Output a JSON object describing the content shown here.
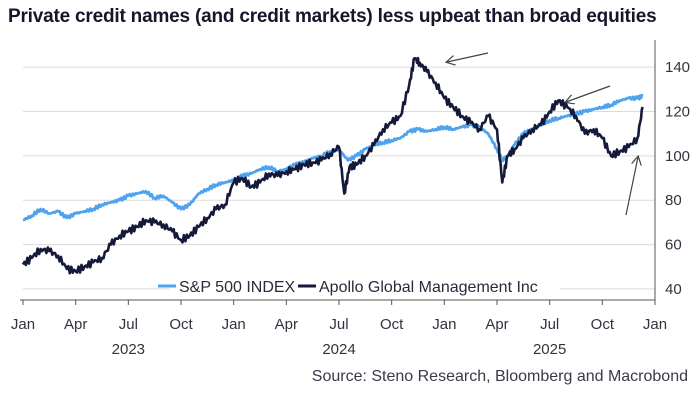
{
  "title": "Private credit names (and credit markets) less upbeat than broad equities",
  "source": "Source: Steno Research, Bloomberg and Macrobond",
  "chart_data": {
    "type": "line",
    "title": "Private credit names (and credit markets) less upbeat than broad equities",
    "ylim": [
      35,
      150
    ],
    "yticks": [
      40,
      60,
      80,
      100,
      120,
      140
    ],
    "xlim": [
      0,
      36
    ],
    "month_ticks": [
      {
        "m": 0,
        "label": "Jan"
      },
      {
        "m": 3,
        "label": "Apr"
      },
      {
        "m": 6,
        "label": "Jul"
      },
      {
        "m": 9,
        "label": "Oct"
      },
      {
        "m": 12,
        "label": "Jan"
      },
      {
        "m": 15,
        "label": "Apr"
      },
      {
        "m": 18,
        "label": "Jul"
      },
      {
        "m": 21,
        "label": "Oct"
      },
      {
        "m": 24,
        "label": "Jan"
      },
      {
        "m": 27,
        "label": "Apr"
      },
      {
        "m": 30,
        "label": "Jul"
      },
      {
        "m": 33,
        "label": "Oct"
      },
      {
        "m": 36,
        "label": "Jan"
      }
    ],
    "year_labels": [
      {
        "m": 6,
        "label": "2023"
      },
      {
        "m": 18,
        "label": "2024"
      },
      {
        "m": 30,
        "label": "2025"
      }
    ],
    "legend_position": "bottom-center",
    "series": [
      {
        "name": "S&P 500 INDEX",
        "color": "#4fa3ee",
        "x": [
          0,
          0.5,
          1,
          1.5,
          2,
          2.5,
          3,
          3.5,
          4,
          4.5,
          5,
          5.5,
          6,
          6.5,
          7,
          7.5,
          8,
          8.5,
          9,
          9.5,
          10,
          10.5,
          11,
          11.5,
          12,
          12.5,
          13,
          13.5,
          14,
          14.5,
          15,
          15.5,
          16,
          16.5,
          17,
          17.5,
          18,
          18.5,
          19,
          19.5,
          20,
          20.5,
          21,
          21.5,
          22,
          22.5,
          23,
          23.5,
          24,
          24.5,
          25,
          25.5,
          26,
          26.5,
          27,
          27.3,
          27.6,
          28,
          28.5,
          29,
          29.5,
          30,
          30.5,
          31,
          31.5,
          32,
          32.5,
          33,
          33.5,
          34,
          34.5,
          35,
          35.3
        ],
        "values": [
          71,
          73,
          76,
          74,
          75,
          72,
          74,
          75,
          76,
          78,
          79,
          80,
          82,
          83,
          84,
          81,
          82,
          79,
          76,
          78,
          83,
          85,
          87,
          88,
          89,
          91,
          92,
          94,
          95,
          93,
          94,
          96,
          97,
          99,
          100,
          102,
          103,
          98,
          100,
          103,
          105,
          106,
          107,
          108,
          111,
          112,
          111,
          112,
          113,
          112,
          113,
          114,
          113,
          110,
          103,
          98,
          100,
          105,
          110,
          112,
          114,
          116,
          117,
          118,
          119,
          120,
          121,
          122,
          123,
          125,
          126,
          126,
          127
        ]
      },
      {
        "name": "Apollo Global Management Inc",
        "color": "#161a3a",
        "x": [
          0,
          0.5,
          1,
          1.5,
          2,
          2.5,
          3,
          3.5,
          4,
          4.5,
          5,
          5.5,
          6,
          6.5,
          7,
          7.5,
          8,
          8.5,
          9,
          9.5,
          10,
          10.5,
          11,
          11.5,
          12,
          12.5,
          13,
          13.5,
          14,
          14.5,
          15,
          15.5,
          16,
          16.5,
          17,
          17.5,
          18,
          18.3,
          18.6,
          19,
          19.5,
          20,
          20.5,
          21,
          21.5,
          22,
          22.3,
          22.6,
          23,
          23.5,
          24,
          24.5,
          25,
          25.5,
          26,
          26.5,
          27,
          27.3,
          27.6,
          28,
          28.5,
          29,
          29.5,
          30,
          30.5,
          31,
          31.5,
          32,
          32.5,
          33,
          33.5,
          34,
          34.5,
          35,
          35.3
        ],
        "values": [
          51,
          54,
          58,
          57,
          55,
          49,
          48,
          50,
          52,
          54,
          60,
          64,
          66,
          68,
          71,
          70,
          69,
          66,
          62,
          64,
          68,
          72,
          76,
          78,
          88,
          90,
          86,
          88,
          92,
          91,
          93,
          94,
          96,
          97,
          98,
          101,
          104,
          83,
          95,
          96,
          100,
          105,
          112,
          115,
          118,
          132,
          144,
          142,
          138,
          133,
          126,
          122,
          118,
          115,
          112,
          118,
          112,
          88,
          100,
          103,
          108,
          112,
          114,
          120,
          125,
          122,
          118,
          110,
          112,
          108,
          100,
          102,
          104,
          108,
          122
        ]
      }
    ],
    "annotations": [
      {
        "type": "arrow",
        "points_to": "Apollo peak (Dec 2024)"
      },
      {
        "type": "arrow",
        "points_to": "Apollo July 2025"
      },
      {
        "type": "arrow",
        "points_to": "Apollo recent rebound"
      }
    ]
  }
}
